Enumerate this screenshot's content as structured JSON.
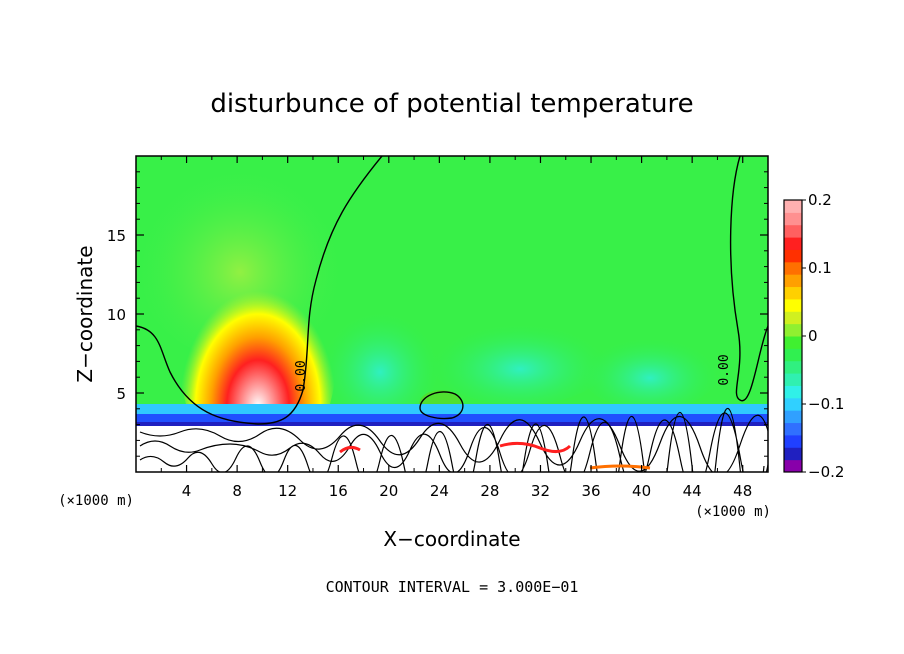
{
  "chart_data": {
    "type": "heatmap",
    "title": "disturbunce of potential temperature",
    "xlabel": "X−coordinate",
    "ylabel": "Z−coordinate",
    "x_unit_left": "(×1000 m)",
    "x_unit_right": "(×1000 m)",
    "xlim": [
      0,
      50
    ],
    "ylim": [
      0,
      20
    ],
    "xticks": [
      4,
      8,
      12,
      16,
      20,
      24,
      28,
      32,
      36,
      40,
      44,
      48
    ],
    "xtick_labels": [
      "4",
      "8",
      "12",
      "16",
      "20",
      "24",
      "28",
      "32",
      "36",
      "40",
      "44",
      "48"
    ],
    "yticks": [
      5,
      10,
      15
    ],
    "ytick_labels": [
      "5",
      "10",
      "15"
    ],
    "contour_label": "0.00",
    "contour_interval_text": "CONTOUR INTERVAL = 3.000E−01",
    "colorbar": {
      "min": -0.2,
      "max": 0.2,
      "ticks": [
        0.2,
        0.1,
        0,
        -0.1,
        -0.2
      ],
      "tick_labels": [
        "0.2",
        "0.1",
        "0",
        "−0.1",
        "−0.2"
      ],
      "colors": [
        "#8800aa",
        "#2020c0",
        "#2040ff",
        "#3070ff",
        "#30a0ff",
        "#30d0ff",
        "#30f0e8",
        "#30f0b0",
        "#30f080",
        "#30f050",
        "#40f030",
        "#90f030",
        "#d0f020",
        "#ffff00",
        "#ffd000",
        "#ffa000",
        "#ff7000",
        "#ff3000",
        "#ff2020",
        "#ff6060",
        "#ff9090",
        "#ffb0b0"
      ]
    }
  }
}
